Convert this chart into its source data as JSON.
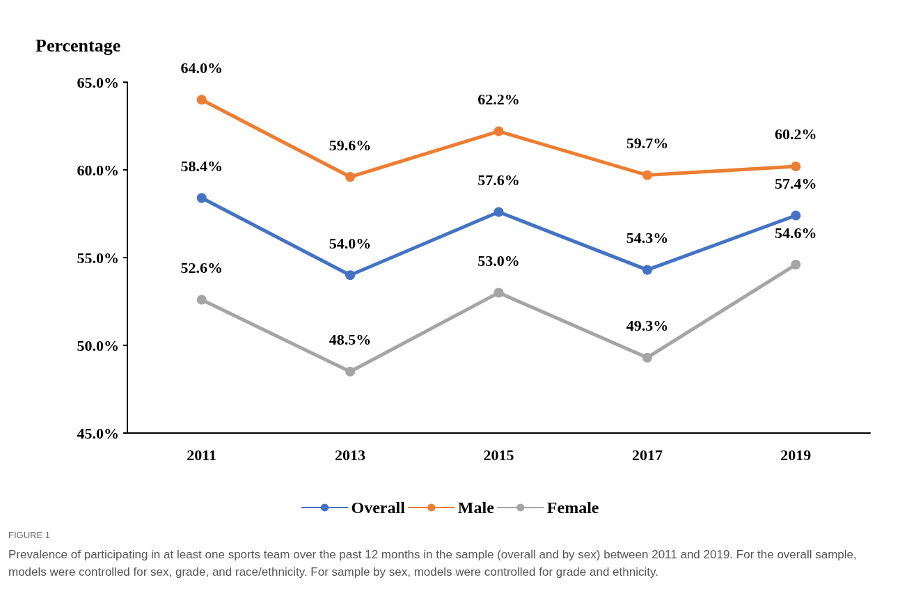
{
  "chart_data": {
    "type": "line",
    "ylabel": "Percentage",
    "categories": [
      "2011",
      "2013",
      "2015",
      "2017",
      "2019"
    ],
    "series": [
      {
        "name": "Overall",
        "color": "#4472c4",
        "values": [
          58.4,
          54.0,
          57.6,
          54.3,
          57.4
        ],
        "value_labels": [
          "58.4%",
          "54.0%",
          "57.6%",
          "54.3%",
          "57.4%"
        ]
      },
      {
        "name": "Male",
        "color": "#ed7d31",
        "values": [
          64.0,
          59.6,
          62.2,
          59.7,
          60.2
        ],
        "value_labels": [
          "64.0%",
          "59.6%",
          "62.2%",
          "59.7%",
          "60.2%"
        ]
      },
      {
        "name": "Female",
        "color": "#a5a5a5",
        "values": [
          52.6,
          48.5,
          53.0,
          49.3,
          54.6
        ],
        "value_labels": [
          "52.6%",
          "48.5%",
          "53.0%",
          "49.3%",
          "54.6%"
        ]
      }
    ],
    "ylim": [
      45,
      65
    ],
    "yticks": [
      {
        "value": 45,
        "label": "45.0%"
      },
      {
        "value": 50,
        "label": "50.0%"
      },
      {
        "value": 55,
        "label": "55.0%"
      },
      {
        "value": 60,
        "label": "60.0%"
      },
      {
        "value": 65,
        "label": "65.0%"
      }
    ],
    "grid": false,
    "legend": "bottom",
    "marker": "circle",
    "line_style": "solid",
    "annotations": [
      "FIGURE 1",
      "Prevalence of participating in at least one sports team over the past 12 months in the sample (overall and by sex) between 2011 and 2019. For the overall sample, models were controlled for sex, grade, and race/ethnicity. For sample by sex, models were controlled for grade and ethnicity."
    ]
  }
}
